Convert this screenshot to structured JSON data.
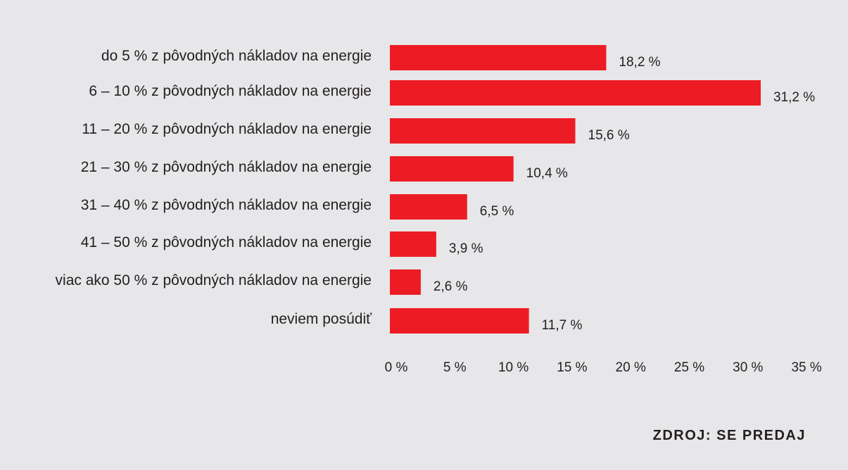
{
  "chart_data": {
    "type": "bar",
    "orientation": "horizontal",
    "categories": [
      "do 5 % z pôvodných nákladov na energie",
      "6 – 10 % z pôvodných nákladov na energie",
      "11 – 20 % z pôvodných nákladov na energie",
      "21 – 30 % z pôvodných nákladov na energie",
      "31 – 40 % z pôvodných nákladov na energie",
      "41 – 50 % z pôvodných nákladov na energie",
      "viac ako 50 % z pôvodných nákladov na energie",
      "neviem posúdiť"
    ],
    "values": [
      18.2,
      31.2,
      15.6,
      10.4,
      6.5,
      3.9,
      2.6,
      11.7
    ],
    "value_labels": [
      "18,2 %",
      "31,2 %",
      "15,6 %",
      "10,4 %",
      "6,5 %",
      "3,9 %",
      "2,6 %",
      "11,7 %"
    ],
    "xlim": [
      0,
      35
    ],
    "xticks": [
      0,
      5,
      10,
      15,
      20,
      25,
      30,
      35
    ],
    "xtick_labels": [
      "0 %",
      "5 %",
      "10 %",
      "15 %",
      "20 %",
      "25 %",
      "30 %",
      "35 %"
    ],
    "bar_color": "#ed1c24",
    "grid": false,
    "legend": "none"
  },
  "source": "ZDROJ: SE PREDAJ"
}
